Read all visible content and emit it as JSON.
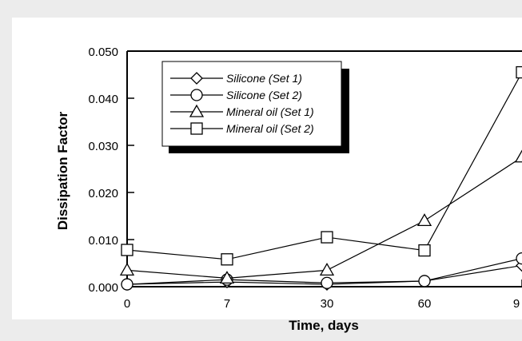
{
  "chart_data": {
    "type": "line",
    "title": "",
    "xlabel": "Time, days",
    "ylabel": "Dissipation Factor",
    "categories": [
      "0",
      "7",
      "30",
      "60",
      "9"
    ],
    "yticks": [
      "0.000",
      "0.010",
      "0.020",
      "0.030",
      "0.040",
      "0.050"
    ],
    "ylim": [
      0,
      0.05
    ],
    "grid": false,
    "legend_position": "top-left",
    "series": [
      {
        "name": "Silicone (Set 1)",
        "marker": "diamond",
        "values": [
          0.0005,
          0.001,
          0.0005,
          0.0012,
          0.0045
        ]
      },
      {
        "name": "Silicone (Set 2)",
        "marker": "circle",
        "values": [
          0.0005,
          0.0015,
          0.0008,
          0.0012,
          0.006
        ]
      },
      {
        "name": "Mineral oil (Set 1)",
        "marker": "triangle",
        "values": [
          0.0035,
          0.0018,
          0.0035,
          0.014,
          0.0275
        ]
      },
      {
        "name": "Mineral oil (Set 2)",
        "marker": "square",
        "values": [
          0.0078,
          0.0058,
          0.0105,
          0.0077,
          0.0455
        ]
      }
    ]
  }
}
